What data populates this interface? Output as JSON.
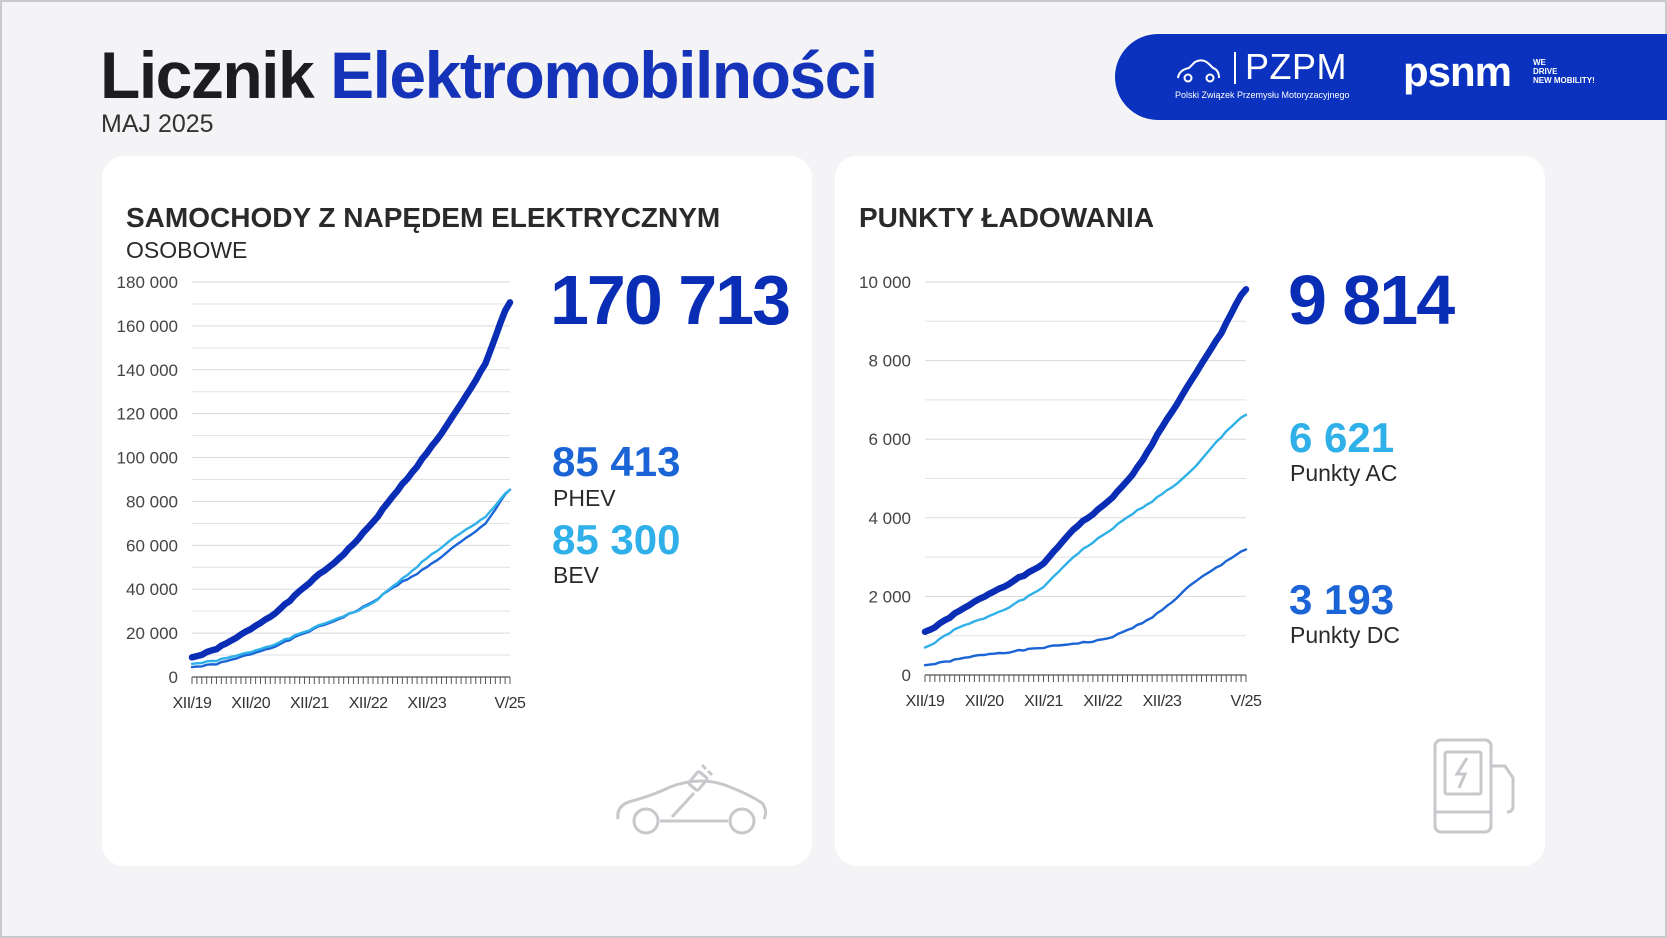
{
  "header": {
    "title_part1": "Licznik",
    "title_part2": "Elektromobilności",
    "subtitle": "MAJ 2025"
  },
  "logos": {
    "pzpm_name": "PZPM",
    "pzpm_full": "Polski Związek Przemysłu Motoryzacyjnego",
    "psnm_name": "psnm",
    "psnm_tagline_1": "WE",
    "psnm_tagline_2": "DRIVE",
    "psnm_tagline_3": "NEW MOBILITY!",
    "psnm_icon": "pzpm-car-icon"
  },
  "colors": {
    "total": "#0a2db5",
    "mid": "#1a64d6",
    "light": "#2fb0e8",
    "brand": "#0a32bf"
  },
  "cards": {
    "cars": {
      "title": "SAMOCHODY Z NAPĘDEM ELEKTRYCZNYM",
      "subtitle": "OSOBOWE",
      "total_value": "170 713",
      "phev_value": "85 413",
      "phev_label": "PHEV",
      "bev_value": "85 300",
      "bev_label": "BEV",
      "icon": "electric-car-icon"
    },
    "charging": {
      "title": "PUNKTY ŁADOWANIA",
      "total_value": "9 814",
      "ac_value": "6 621",
      "ac_label": "Punkty AC",
      "dc_value": "3 193",
      "dc_label": "Punkty DC",
      "icon": "charging-station-icon"
    }
  },
  "chart_data": [
    {
      "type": "line",
      "title": "SAMOCHODY Z NAPĘDEM ELEKTRYCZNYM",
      "ylim": [
        0,
        180000
      ],
      "yticks": [
        0,
        20000,
        40000,
        60000,
        80000,
        100000,
        120000,
        140000,
        160000,
        180000
      ],
      "ytick_labels": [
        "0",
        "20 000",
        "40 000",
        "60 000",
        "80 000",
        "100 000",
        "120 000",
        "140 000",
        "160 000",
        "180 000"
      ],
      "grid": true,
      "months": 66,
      "x_labels": [
        {
          "m": 0,
          "label": "XII/19"
        },
        {
          "m": 12,
          "label": "XII/20"
        },
        {
          "m": 24,
          "label": "XII/21"
        },
        {
          "m": 36,
          "label": "XII/22"
        },
        {
          "m": 48,
          "label": "XII/23"
        },
        {
          "m": 65,
          "label": "V/25"
        }
      ],
      "x": [
        "XII/19",
        "XII/20",
        "XII/21",
        "XII/22",
        "XII/23",
        "V/25"
      ],
      "series": [
        {
          "name": "",
          "style": "total",
          "points": [
            [
              0,
              9000
            ],
            [
              6,
              14000
            ],
            [
              12,
              22000
            ],
            [
              18,
              31000
            ],
            [
              24,
              43000
            ],
            [
              30,
              54000
            ],
            [
              36,
              68000
            ],
            [
              42,
              85000
            ],
            [
              48,
              102000
            ],
            [
              54,
              121000
            ],
            [
              60,
              143000
            ],
            [
              65,
              170713
            ]
          ]
        },
        {
          "name": "PHEV",
          "style": "mid",
          "points": [
            [
              0,
              4500
            ],
            [
              6,
              6500
            ],
            [
              12,
              10500
            ],
            [
              18,
              15000
            ],
            [
              24,
              21000
            ],
            [
              30,
              26500
            ],
            [
              36,
              33000
            ],
            [
              42,
              42000
            ],
            [
              48,
              50000
            ],
            [
              54,
              60000
            ],
            [
              60,
              70000
            ],
            [
              65,
              85413
            ]
          ]
        },
        {
          "name": "BEV",
          "style": "light",
          "points": [
            [
              0,
              6000
            ],
            [
              6,
              8000
            ],
            [
              12,
              11500
            ],
            [
              18,
              16000
            ],
            [
              24,
              21500
            ],
            [
              30,
              27000
            ],
            [
              36,
              32500
            ],
            [
              42,
              43000
            ],
            [
              48,
              54000
            ],
            [
              54,
              64000
            ],
            [
              60,
              73000
            ],
            [
              65,
              85300
            ]
          ]
        }
      ]
    },
    {
      "type": "line",
      "title": "PUNKTY ŁADOWANIA",
      "ylim": [
        0,
        10000
      ],
      "yticks": [
        0,
        2000,
        4000,
        6000,
        8000,
        10000
      ],
      "ytick_labels": [
        "0",
        "2 000",
        "4 000",
        "6 000",
        "8 000",
        "10 000"
      ],
      "grid": true,
      "months": 66,
      "x_labels": [
        {
          "m": 0,
          "label": "XII/19"
        },
        {
          "m": 12,
          "label": "XII/20"
        },
        {
          "m": 24,
          "label": "XII/21"
        },
        {
          "m": 36,
          "label": "XII/22"
        },
        {
          "m": 48,
          "label": "XII/23"
        },
        {
          "m": 65,
          "label": "V/25"
        }
      ],
      "x": [
        "XII/19",
        "XII/20",
        "XII/21",
        "XII/22",
        "XII/23",
        "V/25"
      ],
      "series": [
        {
          "name": "",
          "style": "total",
          "points": [
            [
              0,
              1100
            ],
            [
              6,
              1550
            ],
            [
              12,
              2000
            ],
            [
              18,
              2400
            ],
            [
              24,
              2850
            ],
            [
              30,
              3700
            ],
            [
              36,
              4300
            ],
            [
              42,
              5100
            ],
            [
              48,
              6300
            ],
            [
              54,
              7500
            ],
            [
              60,
              8700
            ],
            [
              65,
              9814
            ]
          ]
        },
        {
          "name": "Punkty AC",
          "style": "light",
          "points": [
            [
              0,
              700
            ],
            [
              6,
              1150
            ],
            [
              12,
              1450
            ],
            [
              18,
              1800
            ],
            [
              24,
              2250
            ],
            [
              30,
              3000
            ],
            [
              36,
              3550
            ],
            [
              42,
              4100
            ],
            [
              48,
              4600
            ],
            [
              54,
              5200
            ],
            [
              60,
              6050
            ],
            [
              65,
              6621
            ]
          ]
        },
        {
          "name": "Punkty DC",
          "style": "mid",
          "points": [
            [
              0,
              250
            ],
            [
              6,
              380
            ],
            [
              12,
              520
            ],
            [
              18,
              600
            ],
            [
              24,
              700
            ],
            [
              30,
              800
            ],
            [
              36,
              900
            ],
            [
              42,
              1200
            ],
            [
              48,
              1650
            ],
            [
              54,
              2300
            ],
            [
              60,
              2800
            ],
            [
              65,
              3193
            ]
          ]
        }
      ]
    }
  ]
}
